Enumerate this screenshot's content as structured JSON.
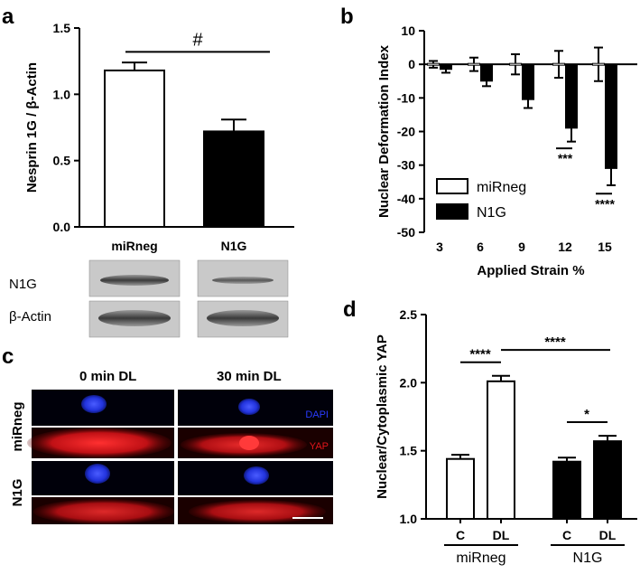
{
  "panels": {
    "a": {
      "letter": "a",
      "significance": "#",
      "blots": {
        "rows": [
          "N1G",
          "β-Actin"
        ]
      }
    },
    "b": {
      "letter": "b"
    },
    "c": {
      "letter": "c",
      "columns": [
        "0 min DL",
        "30 min DL"
      ],
      "rows": [
        "miRneg",
        "N1G"
      ],
      "channel_labels": [
        "DAPI",
        "YAP"
      ]
    },
    "d": {
      "letter": "d",
      "group_labels": [
        "miRneg",
        "N1G"
      ]
    }
  },
  "colors": {
    "open_bar": "#ffffff",
    "filled_bar": "#000000",
    "dapi": "#2a3cff",
    "yap": "#e0151a"
  },
  "chart_data": [
    {
      "id": "a",
      "type": "bar",
      "categories": [
        "miRneg",
        "N1G"
      ],
      "values": [
        1.18,
        0.72
      ],
      "errors": [
        0.06,
        0.09
      ],
      "fills": [
        "open",
        "filled"
      ],
      "ylabel": "Nesprin 1G / β-Actin",
      "ylim": [
        0,
        1.5
      ],
      "yticks": [
        "0.0",
        "0.5",
        "1.0",
        "1.5"
      ],
      "ytick_values": [
        0,
        0.5,
        1.0,
        1.5
      ],
      "annotations": [
        {
          "text": "#",
          "between": [
            "miRneg",
            "N1G"
          ]
        }
      ]
    },
    {
      "id": "b",
      "type": "bar",
      "categories": [
        "3",
        "6",
        "9",
        "12",
        "15"
      ],
      "series": [
        {
          "name": "miRneg",
          "values": [
            0,
            0,
            0,
            0,
            0
          ],
          "errors": [
            1,
            2,
            3,
            4,
            5
          ]
        },
        {
          "name": "N1G",
          "values": [
            -1.5,
            -5,
            -10.5,
            -19,
            -31
          ],
          "errors": [
            1,
            1.5,
            2.5,
            4,
            5
          ]
        }
      ],
      "xlabel": "Applied Strain %",
      "ylabel": "Nuclear Deformation Index",
      "ylim": [
        -50,
        10
      ],
      "yticks": [
        "10",
        "0",
        "-10",
        "-20",
        "-30",
        "-40",
        "-50"
      ],
      "ytick_values": [
        10,
        0,
        -10,
        -20,
        -30,
        -40,
        -50
      ],
      "legend": {
        "position": "bottom-left",
        "entries": [
          "miRneg",
          "N1G"
        ]
      },
      "annotations": [
        {
          "text": "***",
          "category": "12"
        },
        {
          "text": "****",
          "category": "15"
        }
      ]
    },
    {
      "id": "d",
      "type": "bar",
      "categories": [
        "C",
        "DL",
        "C",
        "DL"
      ],
      "groups": [
        "miRneg",
        "miRneg",
        "N1G",
        "N1G"
      ],
      "values": [
        1.44,
        2.01,
        1.42,
        1.57
      ],
      "errors": [
        0.03,
        0.04,
        0.03,
        0.04
      ],
      "fills": [
        "open",
        "open",
        "filled",
        "filled"
      ],
      "ylabel": "Nuclear/Cytoplasmic YAP",
      "ylim": [
        1.0,
        2.5
      ],
      "yticks": [
        "1.0",
        "1.5",
        "2.0",
        "2.5"
      ],
      "ytick_values": [
        1.0,
        1.5,
        2.0,
        2.5
      ],
      "annotations": [
        {
          "text": "****",
          "between": [
            0,
            1
          ]
        },
        {
          "text": "****",
          "between": [
            1,
            3
          ]
        },
        {
          "text": "*",
          "between": [
            2,
            3
          ]
        }
      ]
    }
  ]
}
